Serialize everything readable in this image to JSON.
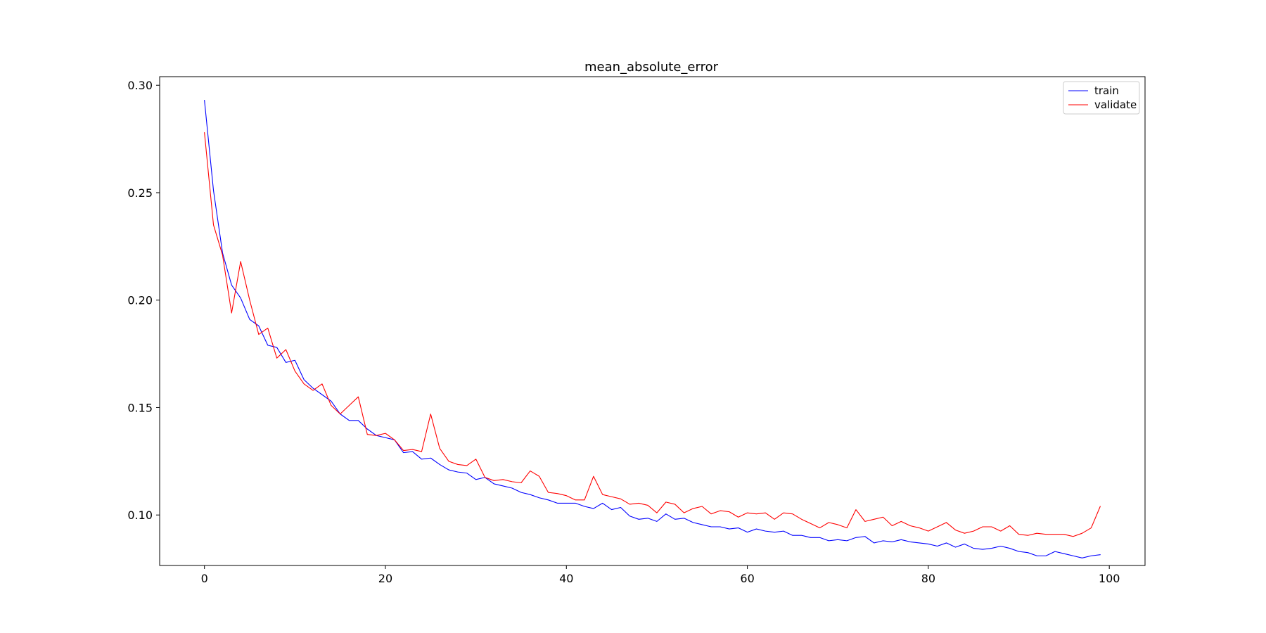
{
  "chart_data": {
    "type": "line",
    "title": "mean_absolute_error",
    "xlabel": "",
    "ylabel": "",
    "xlim": [
      -4.95,
      103.95
    ],
    "ylim": [
      0.0765,
      0.304
    ],
    "x_ticks": [
      0,
      20,
      40,
      60,
      80,
      100
    ],
    "y_ticks": [
      0.1,
      0.15,
      0.2,
      0.25,
      0.3
    ],
    "y_tick_labels": [
      "0.10",
      "0.15",
      "0.20",
      "0.25",
      "0.30"
    ],
    "grid": false,
    "legend_position": "upper right",
    "x": [
      0,
      1,
      2,
      3,
      4,
      5,
      6,
      7,
      8,
      9,
      10,
      11,
      12,
      13,
      14,
      15,
      16,
      17,
      18,
      19,
      20,
      21,
      22,
      23,
      24,
      25,
      26,
      27,
      28,
      29,
      30,
      31,
      32,
      33,
      34,
      35,
      36,
      37,
      38,
      39,
      40,
      41,
      42,
      43,
      44,
      45,
      46,
      47,
      48,
      49,
      50,
      51,
      52,
      53,
      54,
      55,
      56,
      57,
      58,
      59,
      60,
      61,
      62,
      63,
      64,
      65,
      66,
      67,
      68,
      69,
      70,
      71,
      72,
      73,
      74,
      75,
      76,
      77,
      78,
      79,
      80,
      81,
      82,
      83,
      84,
      85,
      86,
      87,
      88,
      89,
      90,
      91,
      92,
      93,
      94,
      95,
      96,
      97,
      98,
      99
    ],
    "series": [
      {
        "name": "train",
        "color": "#0000ff",
        "values": [
          0.293,
          0.251,
          0.222,
          0.207,
          0.201,
          0.191,
          0.188,
          0.179,
          0.178,
          0.171,
          0.172,
          0.163,
          0.159,
          0.156,
          0.153,
          0.147,
          0.144,
          0.144,
          0.14,
          0.137,
          0.136,
          0.135,
          0.129,
          0.1295,
          0.126,
          0.1265,
          0.1235,
          0.121,
          0.12,
          0.1195,
          0.1165,
          0.1175,
          0.1145,
          0.1135,
          0.1125,
          0.1105,
          0.1095,
          0.108,
          0.107,
          0.1055,
          0.1055,
          0.1055,
          0.104,
          0.103,
          0.1055,
          0.1025,
          0.1035,
          0.0995,
          0.098,
          0.0985,
          0.097,
          0.1005,
          0.098,
          0.0985,
          0.0965,
          0.0955,
          0.0945,
          0.0945,
          0.0935,
          0.094,
          0.092,
          0.0935,
          0.0925,
          0.092,
          0.0925,
          0.0905,
          0.0905,
          0.0895,
          0.0895,
          0.088,
          0.0885,
          0.088,
          0.0895,
          0.09,
          0.087,
          0.088,
          0.0875,
          0.0885,
          0.0875,
          0.087,
          0.0865,
          0.0855,
          0.087,
          0.085,
          0.0865,
          0.0845,
          0.084,
          0.0845,
          0.0855,
          0.0845,
          0.083,
          0.0825,
          0.081,
          0.081,
          0.083,
          0.082,
          0.081,
          0.08,
          0.081,
          0.0815
        ]
      },
      {
        "name": "validate",
        "color": "#ff0000",
        "values": [
          0.278,
          0.235,
          0.221,
          0.194,
          0.218,
          0.2,
          0.184,
          0.187,
          0.173,
          0.177,
          0.167,
          0.161,
          0.158,
          0.161,
          0.151,
          0.147,
          0.151,
          0.155,
          0.1375,
          0.137,
          0.138,
          0.135,
          0.13,
          0.1305,
          0.1295,
          0.147,
          0.131,
          0.125,
          0.1235,
          0.123,
          0.126,
          0.1175,
          0.116,
          0.1165,
          0.1155,
          0.115,
          0.1205,
          0.118,
          0.1105,
          0.11,
          0.109,
          0.107,
          0.107,
          0.118,
          0.1095,
          0.1085,
          0.1075,
          0.105,
          0.1055,
          0.1045,
          0.101,
          0.106,
          0.105,
          0.101,
          0.103,
          0.104,
          0.1005,
          0.102,
          0.1015,
          0.099,
          0.101,
          0.1005,
          0.101,
          0.098,
          0.101,
          0.1005,
          0.098,
          0.096,
          0.094,
          0.0965,
          0.0955,
          0.094,
          0.1025,
          0.097,
          0.098,
          0.099,
          0.095,
          0.097,
          0.095,
          0.094,
          0.0925,
          0.0945,
          0.0965,
          0.093,
          0.0915,
          0.0925,
          0.0945,
          0.0945,
          0.0925,
          0.095,
          0.091,
          0.0905,
          0.0915,
          0.091,
          0.091,
          0.091,
          0.09,
          0.0915,
          0.094,
          0.104
        ]
      }
    ]
  }
}
